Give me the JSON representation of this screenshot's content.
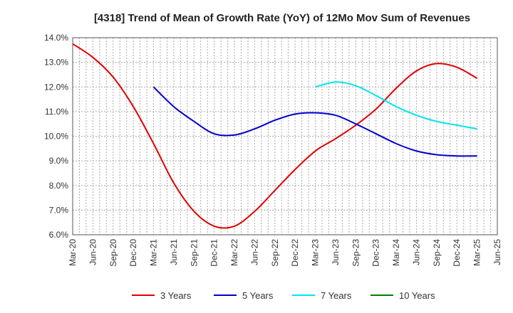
{
  "chart_data": {
    "type": "line",
    "title": "[4318]  Trend of Mean of Growth Rate (YoY) of 12Mo Mov Sum of Revenues",
    "xlabel": "",
    "ylabel": "",
    "ylim": [
      6.0,
      14.0
    ],
    "y_ticks": [
      "6.0%",
      "7.0%",
      "8.0%",
      "9.0%",
      "10.0%",
      "11.0%",
      "12.0%",
      "13.0%",
      "14.0%"
    ],
    "x_ticks": [
      "Mar-20",
      "Jun-20",
      "Sep-20",
      "Dec-20",
      "Mar-21",
      "Jun-21",
      "Sep-21",
      "Dec-21",
      "Mar-22",
      "Jun-22",
      "Sep-22",
      "Dec-22",
      "Mar-23",
      "Jun-23",
      "Sep-23",
      "Dec-23",
      "Mar-24",
      "Jun-24",
      "Sep-24",
      "Dec-24",
      "Mar-25",
      "Jun-25"
    ],
    "grid": true,
    "legend_position": "bottom",
    "series": [
      {
        "name": "3 Years",
        "color": "#e00000",
        "points": [
          [
            0,
            13.75
          ],
          [
            1,
            13.2
          ],
          [
            2,
            12.4
          ],
          [
            3,
            11.2
          ],
          [
            4,
            9.7
          ],
          [
            5,
            8.1
          ],
          [
            6,
            6.95
          ],
          [
            7,
            6.35
          ],
          [
            8,
            6.35
          ],
          [
            9,
            6.95
          ],
          [
            10,
            7.8
          ],
          [
            11,
            8.65
          ],
          [
            12,
            9.4
          ],
          [
            13,
            9.9
          ],
          [
            14,
            10.45
          ],
          [
            15,
            11.1
          ],
          [
            16,
            11.95
          ],
          [
            17,
            12.65
          ],
          [
            18,
            12.95
          ],
          [
            19,
            12.8
          ],
          [
            20,
            12.35
          ]
        ]
      },
      {
        "name": "5 Years",
        "color": "#0000cc",
        "points": [
          [
            4,
            12.0
          ],
          [
            5,
            11.2
          ],
          [
            6,
            10.6
          ],
          [
            7,
            10.1
          ],
          [
            8,
            10.05
          ],
          [
            9,
            10.3
          ],
          [
            10,
            10.65
          ],
          [
            11,
            10.9
          ],
          [
            12,
            10.95
          ],
          [
            13,
            10.85
          ],
          [
            14,
            10.5
          ],
          [
            15,
            10.1
          ],
          [
            16,
            9.7
          ],
          [
            17,
            9.4
          ],
          [
            18,
            9.25
          ],
          [
            19,
            9.2
          ],
          [
            20,
            9.2
          ]
        ]
      },
      {
        "name": "7 Years",
        "color": "#00e5ee",
        "points": [
          [
            12,
            12.0
          ],
          [
            13,
            12.2
          ],
          [
            14,
            12.05
          ],
          [
            15,
            11.65
          ],
          [
            16,
            11.2
          ],
          [
            17,
            10.85
          ],
          [
            18,
            10.6
          ],
          [
            19,
            10.45
          ],
          [
            20,
            10.3
          ]
        ]
      },
      {
        "name": "10 Years",
        "color": "#008000",
        "points": []
      }
    ]
  }
}
